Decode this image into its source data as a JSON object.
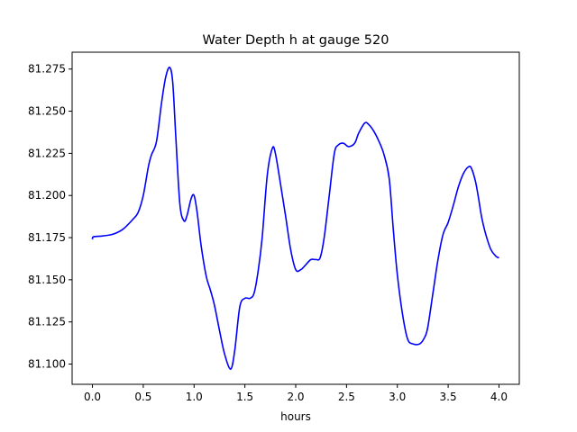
{
  "chart_data": {
    "type": "line",
    "title": "Water Depth h at gauge 520",
    "xlabel": "hours",
    "ylabel": "",
    "xlim": [
      -0.2,
      4.2
    ],
    "ylim": [
      81.088,
      81.285
    ],
    "xticks": [
      0.0,
      0.5,
      1.0,
      1.5,
      2.0,
      2.5,
      3.0,
      3.5,
      4.0
    ],
    "xtick_labels": [
      "0.0",
      "0.5",
      "1.0",
      "1.5",
      "2.0",
      "2.5",
      "3.0",
      "3.5",
      "4.0"
    ],
    "yticks": [
      81.1,
      81.125,
      81.15,
      81.175,
      81.2,
      81.225,
      81.25,
      81.275
    ],
    "ytick_labels": [
      "81.100",
      "81.125",
      "81.150",
      "81.175",
      "81.200",
      "81.225",
      "81.250",
      "81.275"
    ],
    "grid": false,
    "series": [
      {
        "color": "#0000ff",
        "x": [
          0.0,
          0.01,
          0.1,
          0.2,
          0.3,
          0.4,
          0.45,
          0.5,
          0.55,
          0.58,
          0.63,
          0.68,
          0.72,
          0.76,
          0.79,
          0.82,
          0.86,
          0.9,
          0.93,
          0.97,
          1.0,
          1.03,
          1.07,
          1.12,
          1.16,
          1.2,
          1.25,
          1.3,
          1.36,
          1.4,
          1.45,
          1.5,
          1.55,
          1.59,
          1.63,
          1.67,
          1.72,
          1.77,
          1.8,
          1.85,
          1.9,
          1.95,
          2.0,
          2.05,
          2.1,
          2.15,
          2.2,
          2.24,
          2.28,
          2.33,
          2.38,
          2.42,
          2.47,
          2.52,
          2.58,
          2.62,
          2.68,
          2.72,
          2.77,
          2.82,
          2.87,
          2.92,
          2.96,
          3.0,
          3.05,
          3.1,
          3.15,
          3.22,
          3.27,
          3.3,
          3.35,
          3.4,
          3.45,
          3.5,
          3.55,
          3.6,
          3.65,
          3.7,
          3.73,
          3.77,
          3.8,
          3.83,
          3.87,
          3.92,
          3.97,
          4.0
        ],
        "y": [
          81.174,
          81.1755,
          81.176,
          81.177,
          81.18,
          81.186,
          81.19,
          81.2,
          81.217,
          81.224,
          81.232,
          81.255,
          81.27,
          81.276,
          81.267,
          81.235,
          81.195,
          81.185,
          81.188,
          81.198,
          81.2,
          81.19,
          81.17,
          81.152,
          81.144,
          81.135,
          81.12,
          81.106,
          81.097,
          81.108,
          81.134,
          81.139,
          81.139,
          81.142,
          81.155,
          81.175,
          81.212,
          81.228,
          81.225,
          81.207,
          81.188,
          81.168,
          81.156,
          81.156,
          81.159,
          81.162,
          81.162,
          81.163,
          81.175,
          81.2,
          81.225,
          81.23,
          81.231,
          81.229,
          81.231,
          81.237,
          81.243,
          81.242,
          81.238,
          81.232,
          81.224,
          81.21,
          81.18,
          81.153,
          81.13,
          81.115,
          81.112,
          81.112,
          81.116,
          81.122,
          81.142,
          81.162,
          81.177,
          81.184,
          81.194,
          81.205,
          81.213,
          81.217,
          81.216,
          81.208,
          81.198,
          81.187,
          81.177,
          81.168,
          81.164,
          81.163
        ]
      }
    ]
  }
}
